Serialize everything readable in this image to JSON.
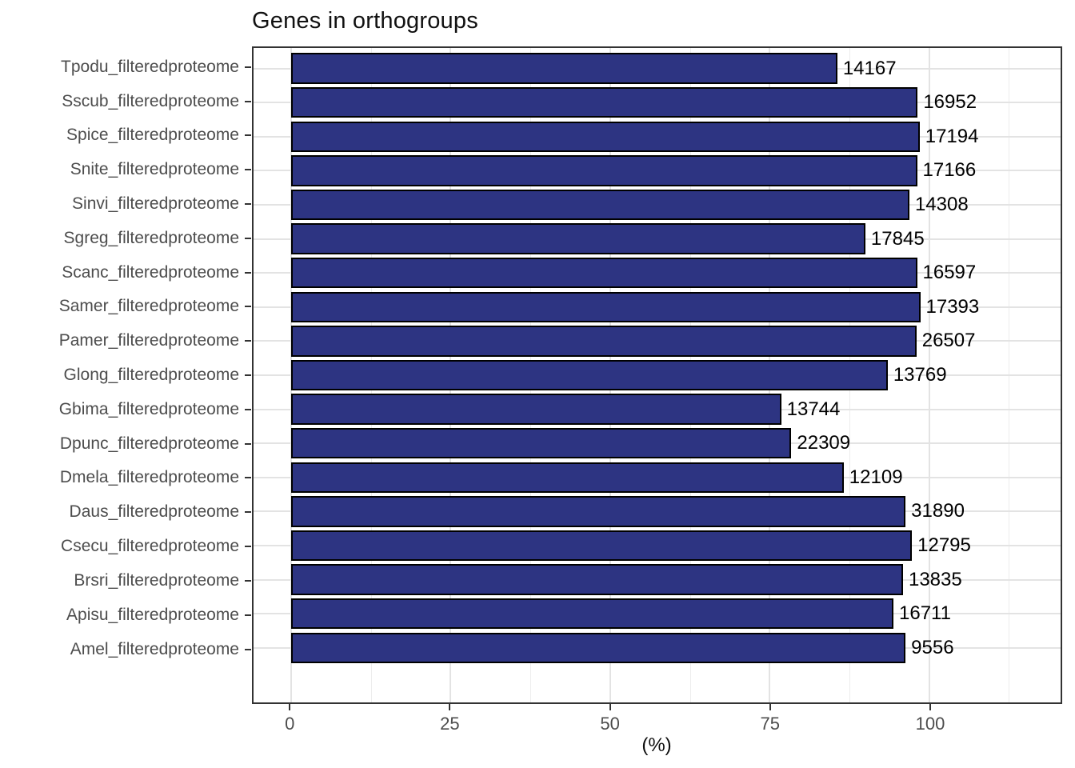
{
  "chart_data": {
    "type": "bar",
    "orientation": "horizontal",
    "title": "Genes in orthogroups",
    "xlabel": "(%)",
    "ylabel": "",
    "grid": true,
    "legend": false,
    "xlim_shown": [
      -5.9,
      120.6
    ],
    "x_ticks": [
      0,
      25,
      50,
      75,
      100
    ],
    "x_minor_ticks": [
      12.5,
      37.5,
      62.5,
      87.5,
      112.5
    ],
    "bars": [
      {
        "category": "Tpodu_filteredproteome",
        "percent": 85.6,
        "label": "14167"
      },
      {
        "category": "Sscub_filteredproteome",
        "percent": 98.2,
        "label": "16952"
      },
      {
        "category": "Spice_filteredproteome",
        "percent": 98.5,
        "label": "17194"
      },
      {
        "category": "Snite_filteredproteome",
        "percent": 98.1,
        "label": "17166"
      },
      {
        "category": "Sinvi_filteredproteome",
        "percent": 96.9,
        "label": "14308"
      },
      {
        "category": "Sgreg_filteredproteome",
        "percent": 90.0,
        "label": "17845"
      },
      {
        "category": "Scanc_filteredproteome",
        "percent": 98.1,
        "label": "16597"
      },
      {
        "category": "Samer_filteredproteome",
        "percent": 98.6,
        "label": "17393"
      },
      {
        "category": "Pamer_filteredproteome",
        "percent": 98.0,
        "label": "26507"
      },
      {
        "category": "Glong_filteredproteome",
        "percent": 93.5,
        "label": "13769"
      },
      {
        "category": "Gbima_filteredproteome",
        "percent": 76.8,
        "label": "13744"
      },
      {
        "category": "Dpunc_filteredproteome",
        "percent": 78.4,
        "label": "22309"
      },
      {
        "category": "Dmela_filteredproteome",
        "percent": 86.6,
        "label": "12109"
      },
      {
        "category": "Daus_filteredproteome",
        "percent": 96.3,
        "label": "31890"
      },
      {
        "category": "Csecu_filteredproteome",
        "percent": 97.3,
        "label": "12795"
      },
      {
        "category": "Brsri_filteredproteome",
        "percent": 95.9,
        "label": "13835"
      },
      {
        "category": "Apisu_filteredproteome",
        "percent": 94.4,
        "label": "16711"
      },
      {
        "category": "Amel_filteredproteome",
        "percent": 96.3,
        "label": "9556"
      }
    ]
  },
  "style": {
    "bar_fill": "#2D3482",
    "bar_outline": "#000000",
    "grid_major": "#E3E3E3",
    "grid_minor": "#ECECEC",
    "panel_border": "#333333",
    "axis_text": "#4D4D4D",
    "label_text": "#000000"
  }
}
